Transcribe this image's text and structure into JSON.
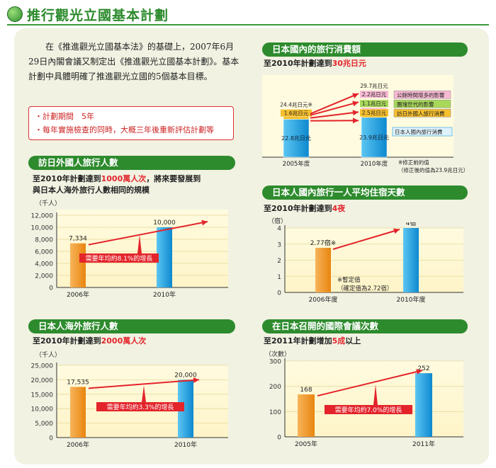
{
  "page": {
    "title": "推行觀光立國基本計劃",
    "intro": "在《推進觀光立國基本法》的基礎上，2007年6月29日內閣會議又制定出《推進觀光立國基本計劃》。基本計劃中具體明確了推進觀光立國的5個基本目標。",
    "notes": [
      "・計劃期間　5年",
      "・每年實施檢查的同時，大概三年後重新評估計劃等"
    ]
  },
  "colors": {
    "green": "#2d8b2d",
    "orange": "#f39a1e",
    "blue": "#1aa0de",
    "red": "#e3242b",
    "pink": "#f7b9d3",
    "lime": "#a8d85a",
    "yellow": "#f6c02e"
  },
  "chart_data": [
    {
      "id": "inbound",
      "type": "bar",
      "title": "訪日外國人旅行人數",
      "subtitle_pre": "至2010年計劃達到",
      "subtitle_hl": "1000萬人次",
      "subtitle_post": "，將來要發展到",
      "subtitle2": "與日本人海外旅行人數相同的規模",
      "unit": "（千人）",
      "categories": [
        "2006年",
        "2010年"
      ],
      "values": [
        7334,
        10000
      ],
      "value_labels": [
        "7,334",
        "10,000"
      ],
      "ylim": [
        0,
        12000
      ],
      "yticks": [
        0,
        2000,
        4000,
        6000,
        8000,
        10000,
        12000
      ],
      "ytick_labels": [
        "0",
        "2,000",
        "4,000",
        "6,000",
        "8,000",
        "10,000",
        "12,000"
      ],
      "annotation": "需要年均約8.1%的增長"
    },
    {
      "id": "outbound",
      "type": "bar",
      "title": "日本人海外旅行人數",
      "subtitle_pre": "至2010年計劃達到",
      "subtitle_hl": "2000萬人次",
      "subtitle_post": "",
      "subtitle2": "",
      "unit": "（千人）",
      "categories": [
        "2006年",
        "2010年"
      ],
      "values": [
        17535,
        20000
      ],
      "value_labels": [
        "17,535",
        "20,000"
      ],
      "ylim": [
        0,
        25000
      ],
      "yticks": [
        0,
        5000,
        10000,
        15000,
        20000,
        25000
      ],
      "ytick_labels": [
        "0",
        "5,000",
        "10,000",
        "15,000",
        "20,000",
        "25,000"
      ],
      "annotation": "需要年均約3.3%的增長"
    },
    {
      "id": "consumption",
      "type": "bar",
      "title": "日本國內的旅行消費額",
      "subtitle_pre": "至2010年計劃達到",
      "subtitle_hl": "30兆日元",
      "subtitle_post": "",
      "categories": [
        "2005年度",
        "2010年度"
      ],
      "series": [
        {
          "name": "日本人國內旅行消費",
          "values": [
            22.8,
            23.9
          ],
          "labels": [
            "22.8兆日元",
            "23.9兆日元"
          ]
        },
        {
          "name": "訪日外國人旅行消費",
          "values": [
            1.6,
            2.5
          ],
          "labels": [
            "1.6兆日元",
            "2.5兆日元"
          ]
        },
        {
          "name": "團塊世代的影響",
          "values": [
            0,
            1.1
          ],
          "labels": [
            "",
            "1.1兆日元"
          ]
        },
        {
          "name": "公餘時間增多的影響",
          "values": [
            0,
            2.2
          ],
          "labels": [
            "",
            "2.2兆日元"
          ]
        }
      ],
      "totals": [
        24.4,
        29.7
      ],
      "total_labels": [
        "24.4兆日元※",
        "29.7兆日元"
      ],
      "footnote1": "※修正前的值",
      "footnote2": "（修正後的值為23.9兆日元）"
    },
    {
      "id": "nights",
      "type": "bar",
      "title": "日本人國內旅行一人平均住宿天數",
      "subtitle_pre": "至2010年計劃達到",
      "subtitle_hl": "4夜",
      "subtitle_post": "",
      "unit": "（宿）",
      "categories": [
        "2006年度",
        "2010年度"
      ],
      "values": [
        2.77,
        4
      ],
      "value_labels": [
        "2.77宿※",
        "4宿"
      ],
      "ylim": [
        0,
        4
      ],
      "yticks": [
        0,
        1,
        2,
        3,
        4
      ],
      "ytick_labels": [
        "0",
        "1",
        "2",
        "3",
        "4"
      ],
      "footnote1": "※暫定值",
      "footnote2": "（確定值為2.72宿）"
    },
    {
      "id": "conferences",
      "type": "bar",
      "title": "在日本召開的國際會議次數",
      "subtitle_pre": "至2011年計劃增加",
      "subtitle_hl": "5成",
      "subtitle_post": "以上",
      "unit": "（次數）",
      "categories": [
        "2005年",
        "2011年"
      ],
      "values": [
        168,
        252
      ],
      "value_labels": [
        "168",
        "252"
      ],
      "ylim": [
        0,
        300
      ],
      "yticks": [
        0,
        100,
        200,
        300
      ],
      "ytick_labels": [
        "0",
        "100",
        "200",
        "300"
      ],
      "annotation": "需要年均約7.0%的增長"
    }
  ]
}
